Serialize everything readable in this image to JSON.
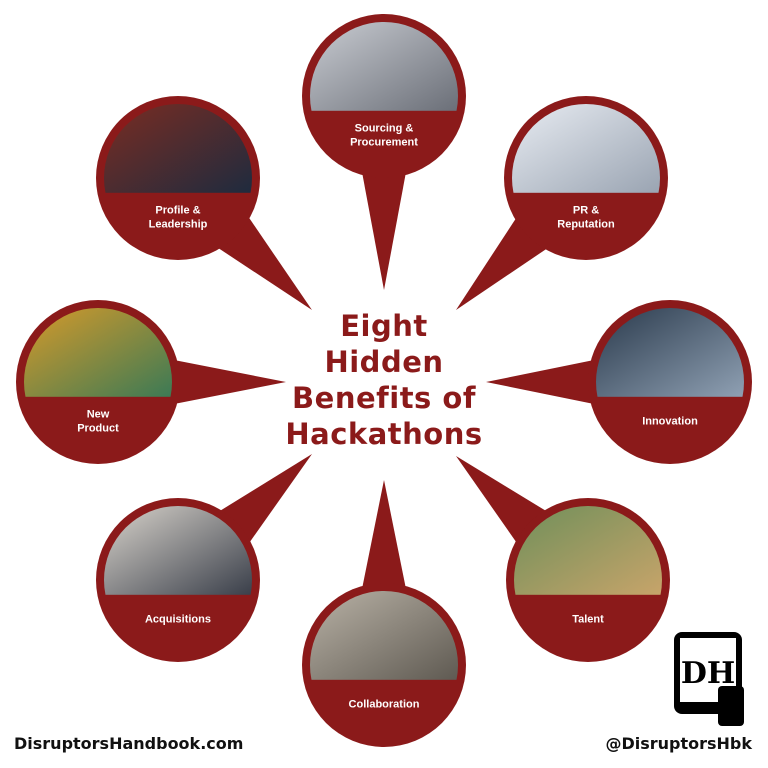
{
  "title_lines": [
    "Eight",
    "Hidden",
    "Benefits of",
    "Hackathons"
  ],
  "nodes": [
    {
      "id": "sourcing",
      "label_lines": [
        "Sourcing &",
        "Procurement"
      ]
    },
    {
      "id": "pr",
      "label_lines": [
        "PR &",
        "Reputation"
      ]
    },
    {
      "id": "innovation",
      "label_lines": [
        "Innovation"
      ]
    },
    {
      "id": "talent",
      "label_lines": [
        "Talent"
      ]
    },
    {
      "id": "collaboration",
      "label_lines": [
        "Collaboration"
      ]
    },
    {
      "id": "acquisitions",
      "label_lines": [
        "Acquisitions"
      ]
    },
    {
      "id": "new-product",
      "label_lines": [
        "New",
        "Product"
      ]
    },
    {
      "id": "profile",
      "label_lines": [
        "Profile &",
        "Leadership"
      ]
    }
  ],
  "footer": {
    "website": "DisruptorsHandbook.com",
    "handle": "@DisruptorsHbk"
  },
  "logo_text": "DH",
  "colors": {
    "accent": "#8b1a1a",
    "label_text": "#ffffff",
    "title_text": "#8b1a1a"
  }
}
